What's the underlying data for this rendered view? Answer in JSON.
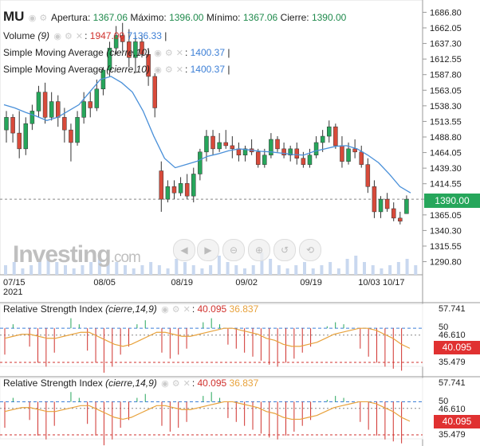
{
  "header": {
    "symbol": "MU",
    "open_label": "Apertura:",
    "open": "1367.06",
    "high_label": "Máximo:",
    "high": "1396.00",
    "low_label": "Mínimo:",
    "low": "1367.06",
    "close_label": "Cierre:",
    "close": "1390.00"
  },
  "indicators": {
    "volume_label": "Volume",
    "volume_param": "(9)",
    "volume_a": "1947.00",
    "volume_b": "7136.33",
    "sma1_label": "Simple Moving Average",
    "sma1_param": "(cierre,10)",
    "sma1_value": "1400.37",
    "sma2_label": "Simple Moving Average",
    "sma2_param": "(cierre,10)",
    "sma2_value": "1400.37"
  },
  "rsi1": {
    "label": "Relative Strength Index",
    "param": "(cierre,14,9)",
    "value_a": "40.095",
    "value_b": "36.837"
  },
  "rsi2": {
    "label": "Relative Strength Index",
    "param": "(cierre,14,9)",
    "value_a": "40.095",
    "value_b": "36.837"
  },
  "price_tag": "1390.00",
  "rsi_tag": "40.095",
  "logo": {
    "main": "Investing",
    "suffix": ".com"
  },
  "controls": [
    "◀",
    "▶",
    "⊖",
    "⊕",
    "↺",
    "⟲"
  ],
  "chart_data": {
    "type": "candlestick",
    "price_axis": [
      "1686.80",
      "1662.05",
      "1637.30",
      "1612.55",
      "1587.80",
      "1563.05",
      "1538.30",
      "1513.55",
      "1488.80",
      "1464.05",
      "1439.30",
      "1414.55",
      "1390.00",
      "1365.05",
      "1340.30",
      "1315.55",
      "1290.80"
    ],
    "date_axis": [
      "07/15\n2021",
      "08/05",
      "08/19",
      "09/02",
      "09/19",
      "10/03",
      "10/17"
    ],
    "rsi_axis": [
      "57.741",
      "50",
      "46.610",
      "35.479"
    ],
    "rsi2_axis": [
      "57.741",
      "50",
      "46.610",
      "35.479"
    ],
    "ohlc": [
      [
        1500,
        1530,
        1480,
        1520
      ],
      [
        1520,
        1525,
        1480,
        1495
      ],
      [
        1495,
        1530,
        1455,
        1470
      ],
      [
        1470,
        1520,
        1460,
        1510
      ],
      [
        1510,
        1540,
        1500,
        1530
      ],
      [
        1530,
        1570,
        1520,
        1560
      ],
      [
        1560,
        1575,
        1510,
        1520
      ],
      [
        1520,
        1560,
        1515,
        1545
      ],
      [
        1545,
        1555,
        1505,
        1520
      ],
      [
        1520,
        1535,
        1480,
        1500
      ],
      [
        1500,
        1510,
        1450,
        1480
      ],
      [
        1480,
        1530,
        1475,
        1520
      ],
      [
        1520,
        1560,
        1510,
        1545
      ],
      [
        1545,
        1560,
        1520,
        1535
      ],
      [
        1535,
        1580,
        1530,
        1565
      ],
      [
        1565,
        1600,
        1555,
        1595
      ],
      [
        1595,
        1640,
        1585,
        1630
      ],
      [
        1630,
        1665,
        1620,
        1650
      ],
      [
        1650,
        1670,
        1625,
        1640
      ],
      [
        1640,
        1660,
        1600,
        1615
      ],
      [
        1615,
        1650,
        1590,
        1640
      ],
      [
        1640,
        1650,
        1615,
        1620
      ],
      [
        1620,
        1630,
        1570,
        1585
      ],
      [
        1585,
        1590,
        1520,
        1535
      ],
      [
        1435,
        1450,
        1370,
        1390
      ],
      [
        1390,
        1420,
        1385,
        1410
      ],
      [
        1410,
        1420,
        1390,
        1400
      ],
      [
        1400,
        1425,
        1395,
        1415
      ],
      [
        1415,
        1430,
        1390,
        1395
      ],
      [
        1395,
        1440,
        1385,
        1430
      ],
      [
        1430,
        1470,
        1420,
        1465
      ],
      [
        1465,
        1500,
        1450,
        1490
      ],
      [
        1490,
        1500,
        1460,
        1470
      ],
      [
        1470,
        1495,
        1465,
        1480
      ],
      [
        1480,
        1500,
        1470,
        1475
      ],
      [
        1475,
        1490,
        1455,
        1470
      ],
      [
        1470,
        1480,
        1450,
        1460
      ],
      [
        1460,
        1475,
        1450,
        1470
      ],
      [
        1470,
        1485,
        1460,
        1465
      ],
      [
        1465,
        1470,
        1440,
        1445
      ],
      [
        1445,
        1470,
        1440,
        1460
      ],
      [
        1460,
        1495,
        1455,
        1485
      ],
      [
        1485,
        1490,
        1465,
        1470
      ],
      [
        1470,
        1480,
        1455,
        1460
      ],
      [
        1460,
        1475,
        1450,
        1470
      ],
      [
        1470,
        1480,
        1445,
        1455
      ],
      [
        1455,
        1465,
        1440,
        1445
      ],
      [
        1445,
        1470,
        1440,
        1460
      ],
      [
        1460,
        1490,
        1455,
        1480
      ],
      [
        1480,
        1500,
        1465,
        1490
      ],
      [
        1490,
        1515,
        1480,
        1505
      ],
      [
        1505,
        1510,
        1470,
        1475
      ],
      [
        1475,
        1490,
        1440,
        1450
      ],
      [
        1450,
        1480,
        1445,
        1470
      ],
      [
        1470,
        1485,
        1455,
        1465
      ],
      [
        1465,
        1475,
        1440,
        1445
      ],
      [
        1445,
        1455,
        1400,
        1410
      ],
      [
        1410,
        1420,
        1360,
        1370
      ],
      [
        1370,
        1395,
        1360,
        1390
      ],
      [
        1390,
        1400,
        1370,
        1375
      ],
      [
        1375,
        1385,
        1355,
        1360
      ],
      [
        1360,
        1370,
        1350,
        1355
      ],
      [
        1367.06,
        1396,
        1367.06,
        1390
      ]
    ],
    "sma": [
      1540,
      1535,
      1528,
      1522,
      1515,
      1520,
      1530,
      1540,
      1560,
      1580,
      1585,
      1575,
      1560,
      1530,
      1490,
      1455,
      1440,
      1445,
      1450,
      1458,
      1462,
      1467,
      1470,
      1468,
      1466,
      1465,
      1463,
      1461,
      1460,
      1466,
      1470,
      1474,
      1475,
      1470,
      1460,
      1448,
      1430,
      1410,
      1400
    ],
    "volume": [
      3,
      4,
      2,
      3,
      5,
      6,
      4,
      3,
      2,
      3,
      4,
      5,
      6,
      4,
      3,
      2,
      3,
      4,
      3,
      2,
      5,
      4,
      3,
      2,
      3,
      6,
      4,
      3,
      2,
      3,
      7,
      5,
      3,
      2,
      3,
      4,
      2,
      3,
      4,
      2,
      5,
      6,
      4,
      3,
      2,
      3,
      4,
      5,
      3
    ],
    "rsi": [
      44,
      52,
      50,
      48,
      40,
      38,
      45,
      50,
      55,
      52,
      46,
      40,
      35,
      38,
      44,
      48,
      52,
      54,
      50,
      45,
      42,
      44,
      47,
      50,
      53,
      55,
      52,
      49,
      47,
      45,
      43,
      41,
      39,
      38,
      40,
      42,
      45,
      48,
      50,
      51,
      53,
      52,
      50,
      47,
      43,
      40,
      38,
      37,
      36
    ],
    "rsi_signal": [
      45,
      46,
      47,
      47,
      46,
      45,
      45,
      46,
      47,
      48,
      48,
      46,
      44,
      42,
      41,
      42,
      44,
      46,
      48,
      48,
      47,
      46,
      46,
      47,
      48,
      49,
      50,
      50,
      49,
      48,
      47,
      45,
      44,
      42,
      41,
      41,
      42,
      43,
      45,
      47,
      48,
      49,
      50,
      50,
      49,
      47,
      45,
      42,
      40
    ]
  }
}
